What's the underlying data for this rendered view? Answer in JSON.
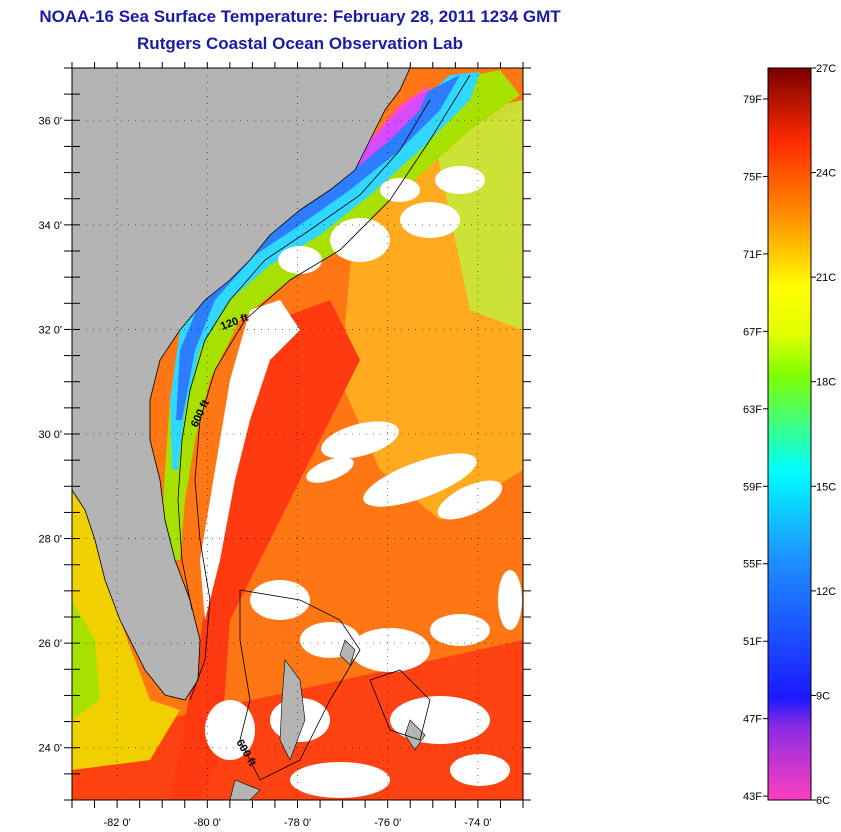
{
  "title": "NOAA-16 Sea Surface Temperature:  February 28, 2011 1234 GMT",
  "subtitle": "Rutgers Coastal Ocean Observation Lab",
  "map": {
    "lon_range": [
      -83,
      -73
    ],
    "lat_range": [
      23,
      37
    ],
    "lon_ticks": [
      {
        "value": -82,
        "label": "-82 0'"
      },
      {
        "value": -80,
        "label": "-80 0'"
      },
      {
        "value": -78,
        "label": "-78 0'"
      },
      {
        "value": -76,
        "label": "-76 0'"
      },
      {
        "value": -74,
        "label": "-74 0'"
      }
    ],
    "lat_ticks": [
      {
        "value": 36,
        "label": "36 0'"
      },
      {
        "value": 34,
        "label": "34 0'"
      },
      {
        "value": 32,
        "label": "32 0'"
      },
      {
        "value": 30,
        "label": "30 0'"
      },
      {
        "value": 28,
        "label": "28 0'"
      },
      {
        "value": 26,
        "label": "26 0'"
      },
      {
        "value": 24,
        "label": "24 0'"
      }
    ],
    "contour_labels": [
      "120 ft",
      "600 ft",
      "600 ft"
    ],
    "colors": {
      "land": "#b4b4b4",
      "cloud": "#ffffff",
      "gulf_stream": "#ff3a10",
      "offshore": "#ff7a14",
      "shelf_cold": "#2f7dff",
      "shelf_mid": "#2ee0ff",
      "coastal_cold": "#ff40ff"
    }
  },
  "colorbar": {
    "range_c": [
      6,
      27
    ],
    "fahrenheit_labels": [
      "79F",
      "75F",
      "71F",
      "67F",
      "63F",
      "59F",
      "55F",
      "51F",
      "47F",
      "43F"
    ],
    "celsius_labels": [
      "27C",
      "24C",
      "21C",
      "18C",
      "15C",
      "12C",
      "9C",
      "6C"
    ]
  }
}
